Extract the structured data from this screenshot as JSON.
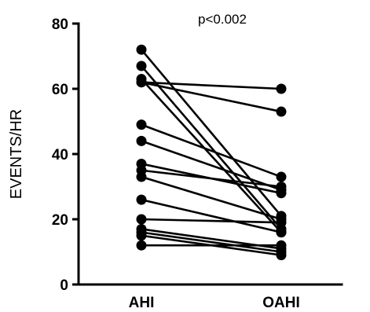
{
  "chart_data": {
    "type": "line",
    "categories": [
      "AHI",
      "OAHI"
    ],
    "ylabel": "EVENTS/HR",
    "ylim": [
      0,
      80
    ],
    "yticks": [
      0,
      20,
      40,
      60,
      80
    ],
    "annotation": "p<0.002",
    "grid": false,
    "pairs": [
      [
        72,
        21
      ],
      [
        67,
        17
      ],
      [
        63,
        16
      ],
      [
        62,
        60
      ],
      [
        62,
        53
      ],
      [
        49,
        33
      ],
      [
        44,
        29
      ],
      [
        37,
        28
      ],
      [
        35,
        30
      ],
      [
        33,
        20
      ],
      [
        26,
        16
      ],
      [
        20,
        19
      ],
      [
        17,
        11
      ],
      [
        16,
        10
      ],
      [
        15,
        9
      ],
      [
        12,
        12
      ]
    ]
  }
}
